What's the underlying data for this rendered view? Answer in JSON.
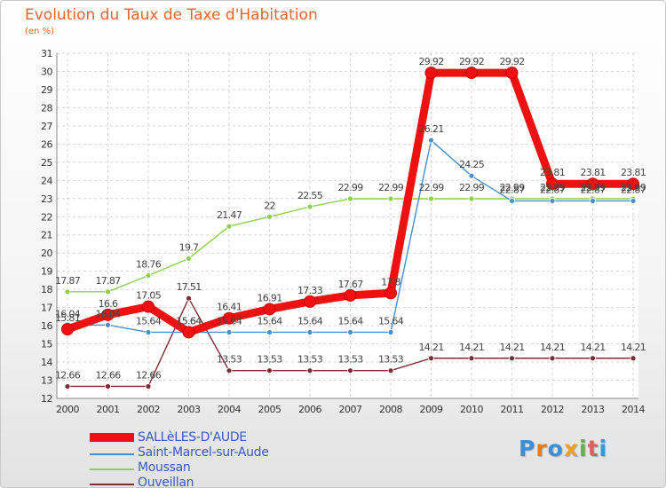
{
  "header": {
    "title": "Evolution du Taux de Taxe d'Habitation",
    "subtitle": "(en %)"
  },
  "logo": {
    "text": "Proxiti"
  },
  "chart_data": {
    "type": "line",
    "x": [
      "2000",
      "2001",
      "2002",
      "2003",
      "2004",
      "2005",
      "2006",
      "2007",
      "2008",
      "2009",
      "2010",
      "2011",
      "2012",
      "2013",
      "2014"
    ],
    "ylim": [
      12,
      31
    ],
    "yticks": [
      12,
      13,
      14,
      15,
      16,
      17,
      18,
      19,
      20,
      21,
      22,
      23,
      24,
      25,
      26,
      27,
      28,
      29,
      30,
      31
    ],
    "grid": true,
    "legend_position": "bottom-left",
    "series": [
      {
        "name": "SALLèLES-D'AUDE",
        "color": "#ee1111",
        "values": [
          15.81,
          16.6,
          17.05,
          15.64,
          16.41,
          16.91,
          17.33,
          17.67,
          17.8,
          29.92,
          29.92,
          29.92,
          23.81,
          23.81,
          23.81
        ],
        "labels": [
          "15.81",
          "16.6",
          "17.05",
          "15.64",
          "16.41",
          "16.91",
          "17.33",
          "17.67",
          "17.8",
          "29.92",
          "29.92",
          "29.92",
          "23.81",
          "23.81",
          "23.81"
        ]
      },
      {
        "name": "Saint-Marcel-sur-Aude",
        "color": "#4a8fc9",
        "values": [
          16.04,
          16.04,
          15.64,
          15.64,
          15.64,
          15.64,
          15.64,
          15.64,
          15.64,
          26.21,
          24.25,
          22.87,
          22.87,
          22.87,
          22.87
        ],
        "labels": [
          "16.04",
          "16.04",
          "15.64",
          "15.64",
          "15.64",
          "15.64",
          "15.64",
          "15.64",
          "15.64",
          "26.21",
          "24.25",
          "22.87",
          "22.87",
          "22.87",
          "22.87"
        ]
      },
      {
        "name": "Moussan",
        "color": "#8ecf4f",
        "values": [
          17.87,
          17.87,
          18.76,
          19.7,
          21.47,
          22,
          22.55,
          22.99,
          22.99,
          22.99,
          22.99,
          22.99,
          22.99,
          22.99,
          22.99
        ],
        "labels": [
          "17.87",
          "17.87",
          "18.76",
          "19.7",
          "21.47",
          "22",
          "22.55",
          "22.99",
          "22.99",
          "22.99",
          "22.99",
          "22.99",
          "22.99",
          "22.99",
          "22.99"
        ]
      },
      {
        "name": "Ouveillan",
        "color": "#7a2e32",
        "values": [
          12.66,
          12.66,
          12.66,
          17.51,
          13.53,
          13.53,
          13.53,
          13.53,
          13.53,
          14.21,
          14.21,
          14.21,
          14.21,
          14.21,
          14.21
        ],
        "labels": [
          "12.66",
          "12.66",
          "12.66",
          "17.51",
          "13.53",
          "13.53",
          "13.53",
          "13.53",
          "13.53",
          "14.21",
          "14.21",
          "14.21",
          "14.21",
          "14.21",
          "14.21"
        ]
      }
    ]
  }
}
